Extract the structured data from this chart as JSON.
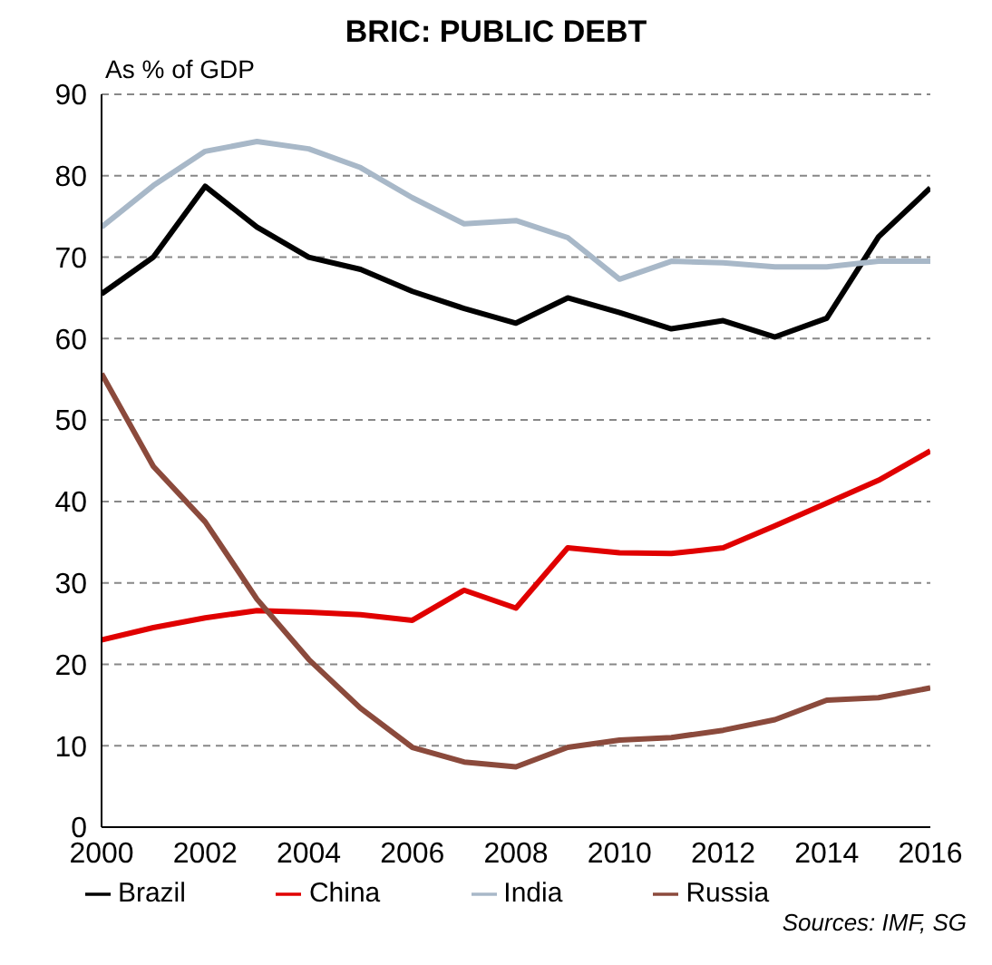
{
  "chart_data": {
    "type": "line",
    "title": "BRIC: PUBLIC DEBT",
    "ylabel": "As % of GDP",
    "annotations": [
      "Sources: IMF, SG"
    ],
    "x": [
      2000,
      2001,
      2002,
      2003,
      2004,
      2005,
      2006,
      2007,
      2008,
      2009,
      2010,
      2011,
      2012,
      2013,
      2014,
      2015,
      2016
    ],
    "series": [
      {
        "name": "Brazil",
        "color": "#000000",
        "values": [
          65.5,
          70,
          78.7,
          73.7,
          70,
          68.5,
          65.8,
          63.7,
          61.9,
          65,
          63.2,
          61.2,
          62.2,
          60.2,
          62.5,
          72.5,
          78.5
        ]
      },
      {
        "name": "China",
        "color": "#e00000",
        "values": [
          23,
          24.5,
          25.7,
          26.6,
          26.4,
          26.1,
          25.4,
          29.1,
          26.9,
          34.3,
          33.7,
          33.6,
          34.3,
          37,
          39.8,
          42.6,
          46.2
        ]
      },
      {
        "name": "India",
        "color": "#a8b8c8",
        "values": [
          73.7,
          78.8,
          83,
          84.2,
          83.3,
          81,
          77.3,
          74.1,
          74.5,
          72.4,
          67.3,
          69.5,
          69.3,
          68.8,
          68.8,
          69.5,
          69.5
        ]
      },
      {
        "name": "Russia",
        "color": "#8b4a3c",
        "values": [
          55.7,
          44.3,
          37.5,
          28,
          20.6,
          14.6,
          9.8,
          8,
          7.4,
          9.8,
          10.7,
          11,
          11.9,
          13.2,
          15.6,
          15.9,
          17.1
        ]
      }
    ],
    "xlim": [
      2000,
      2016
    ],
    "xticks": [
      2000,
      2002,
      2004,
      2006,
      2008,
      2010,
      2012,
      2014,
      2016
    ],
    "ylim": [
      0,
      90
    ],
    "yticks": [
      0,
      10,
      20,
      30,
      40,
      50,
      60,
      70,
      80,
      90
    ],
    "grid": "y",
    "legend": "bottom",
    "marker": "none",
    "line_style": "solid"
  }
}
